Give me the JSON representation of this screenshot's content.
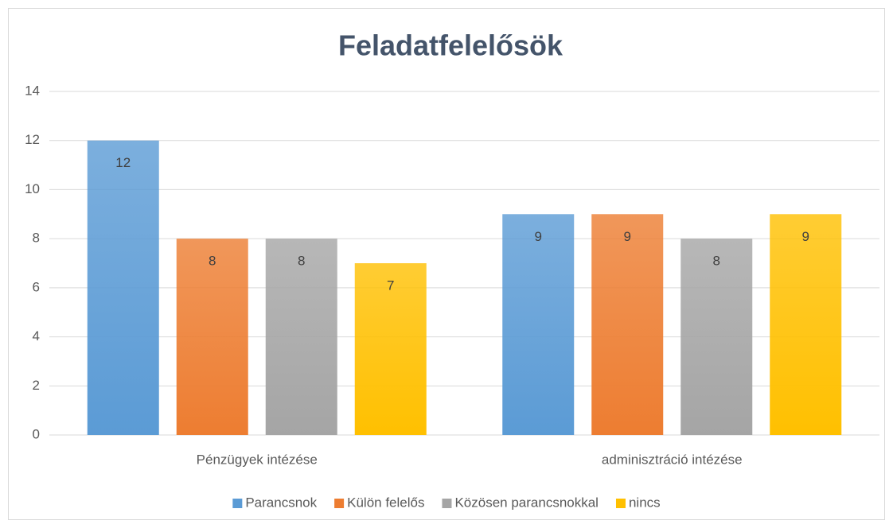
{
  "chart_data": {
    "type": "bar",
    "title": "Feladatfelelősök",
    "categories": [
      "Pénzügyek intézése",
      "adminisztráció intézése"
    ],
    "series": [
      {
        "name": "Parancsnok",
        "color": "#5b9bd5",
        "values": [
          12,
          9
        ]
      },
      {
        "name": "Külön felelős",
        "color": "#ed7d31",
        "values": [
          8,
          9
        ]
      },
      {
        "name": "Közösen parancsnokkal",
        "color": "#a5a5a5",
        "values": [
          8,
          8
        ]
      },
      {
        "name": "nincs",
        "color": "#ffc000",
        "values": [
          7,
          9
        ]
      }
    ],
    "ylim": [
      0,
      14
    ],
    "yticks": [
      0,
      2,
      4,
      6,
      8,
      10,
      12,
      14
    ],
    "grid": true,
    "legend": "bottom"
  }
}
